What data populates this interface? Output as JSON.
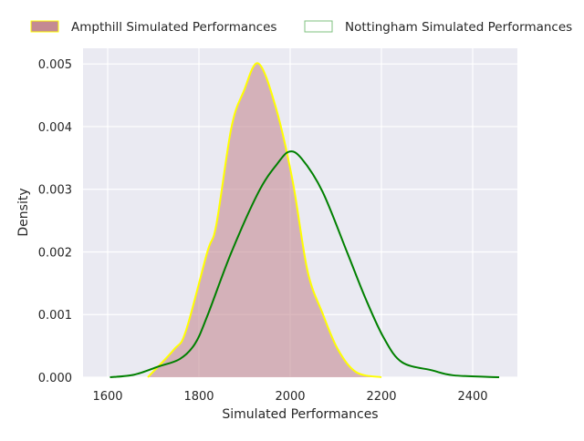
{
  "chart_data": {
    "type": "area",
    "title": "",
    "xlabel": "Simulated Performances",
    "ylabel": "Density",
    "xlim": [
      1546,
      2498
    ],
    "ylim": [
      0,
      0.00525
    ],
    "xticks": [
      1600,
      1800,
      2000,
      2200,
      2400
    ],
    "xtick_labels": [
      "1600",
      "1800",
      "2000",
      "2200",
      "2400"
    ],
    "yticks": [
      0,
      0.001,
      0.002,
      0.003,
      0.004,
      0.005
    ],
    "ytick_labels": [
      "0.000",
      "0.001",
      "0.002",
      "0.003",
      "0.004",
      "0.005"
    ],
    "grid": true,
    "legend_position": "top, above plot",
    "series": [
      {
        "name": "Ampthill Simulated Performances",
        "fill": "#c48a92",
        "line": "#ffff00",
        "filled": true,
        "x": [
          1688,
          1745,
          1771,
          1818,
          1838,
          1871,
          1898,
          1930,
          1968,
          2005,
          2038,
          2071,
          2105,
          2145,
          2200
        ],
        "y": [
          0,
          0.00044,
          0.00073,
          0.00199,
          0.00243,
          0.00398,
          0.00456,
          0.00501,
          0.00432,
          0.00315,
          0.0017,
          0.00102,
          0.00044,
          8e-05,
          0
        ]
      },
      {
        "name": "Nottingham Simulated Performances",
        "fill": "none",
        "line": "#008000",
        "filled": false,
        "x": [
          1605,
          1658,
          1711,
          1758,
          1791,
          1818,
          1871,
          1931,
          1971,
          1998,
          2025,
          2071,
          2125,
          2165,
          2205,
          2245,
          2311,
          2358,
          2458
        ],
        "y": [
          0,
          4e-05,
          0.00017,
          0.00029,
          0.00053,
          0.00097,
          0.00199,
          0.00296,
          0.0034,
          0.0036,
          0.00349,
          0.00296,
          0.00199,
          0.00126,
          0.00063,
          0.00024,
          0.00011,
          3e-05,
          0
        ]
      }
    ]
  }
}
